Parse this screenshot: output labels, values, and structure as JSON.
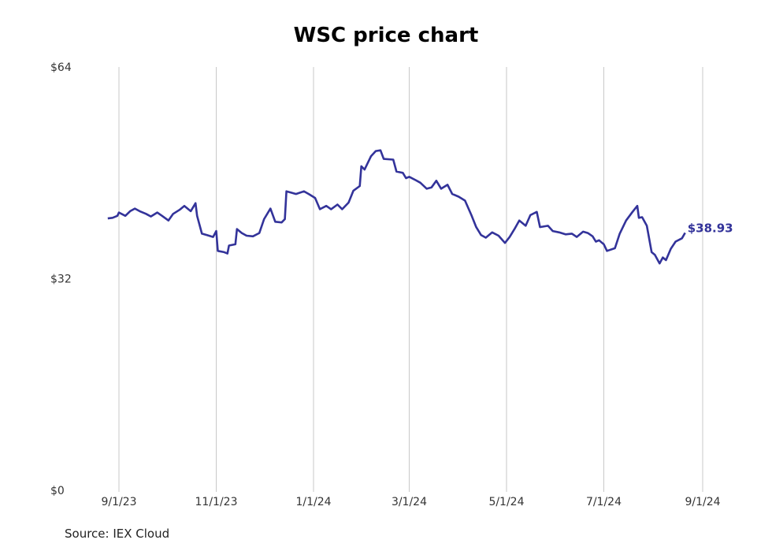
{
  "chart_data": {
    "type": "line",
    "title": "WSC price chart",
    "source": "Source: IEX Cloud",
    "y_ticks": [
      {
        "value": 0,
        "label": "$0"
      },
      {
        "value": 32,
        "label": "$32"
      },
      {
        "value": 64,
        "label": "$64"
      }
    ],
    "x_ticks": [
      {
        "date": "2023-09-01",
        "label": "9/1/23"
      },
      {
        "date": "2023-11-01",
        "label": "11/1/23"
      },
      {
        "date": "2024-01-01",
        "label": "1/1/24"
      },
      {
        "date": "2024-03-01",
        "label": "3/1/24"
      },
      {
        "date": "2024-05-01",
        "label": "5/1/24"
      },
      {
        "date": "2024-07-01",
        "label": "7/1/24"
      },
      {
        "date": "2024-09-01",
        "label": "9/1/24"
      }
    ],
    "ylim": [
      0,
      64
    ],
    "xlim": [
      "2023-08-25",
      "2024-09-01"
    ],
    "grid": "vertical",
    "line_color": "#33339a",
    "end_label": "$38.93",
    "series": [
      {
        "points": [
          [
            "2023-08-25",
            41.1
          ],
          [
            "2023-08-28",
            41.2
          ],
          [
            "2023-08-31",
            41.5
          ],
          [
            "2023-09-01",
            42.0
          ],
          [
            "2023-09-05",
            41.5
          ],
          [
            "2023-09-08",
            42.2
          ],
          [
            "2023-09-11",
            42.6
          ],
          [
            "2023-09-14",
            42.2
          ],
          [
            "2023-09-18",
            41.8
          ],
          [
            "2023-09-21",
            41.4
          ],
          [
            "2023-09-25",
            42.0
          ],
          [
            "2023-09-28",
            41.5
          ],
          [
            "2023-10-02",
            40.8
          ],
          [
            "2023-10-05",
            41.8
          ],
          [
            "2023-10-09",
            42.4
          ],
          [
            "2023-10-12",
            43.0
          ],
          [
            "2023-10-16",
            42.2
          ],
          [
            "2023-10-19",
            43.4
          ],
          [
            "2023-10-20",
            41.5
          ],
          [
            "2023-10-23",
            38.8
          ],
          [
            "2023-10-26",
            38.6
          ],
          [
            "2023-10-30",
            38.3
          ],
          [
            "2023-11-01",
            39.2
          ],
          [
            "2023-11-02",
            36.2
          ],
          [
            "2023-11-06",
            36.0
          ],
          [
            "2023-11-08",
            35.8
          ],
          [
            "2023-11-09",
            37.0
          ],
          [
            "2023-11-13",
            37.2
          ],
          [
            "2023-11-14",
            39.5
          ],
          [
            "2023-11-17",
            38.9
          ],
          [
            "2023-11-20",
            38.5
          ],
          [
            "2023-11-24",
            38.4
          ],
          [
            "2023-11-28",
            38.9
          ],
          [
            "2023-12-01",
            41.0
          ],
          [
            "2023-12-05",
            42.6
          ],
          [
            "2023-12-08",
            40.6
          ],
          [
            "2023-12-12",
            40.5
          ],
          [
            "2023-12-14",
            41.0
          ],
          [
            "2023-12-15",
            45.2
          ],
          [
            "2023-12-18",
            45.0
          ],
          [
            "2023-12-21",
            44.8
          ],
          [
            "2023-12-26",
            45.2
          ],
          [
            "2023-12-29",
            44.8
          ],
          [
            "2024-01-02",
            44.2
          ],
          [
            "2024-01-05",
            42.5
          ],
          [
            "2024-01-09",
            43.0
          ],
          [
            "2024-01-12",
            42.5
          ],
          [
            "2024-01-16",
            43.2
          ],
          [
            "2024-01-19",
            42.5
          ],
          [
            "2024-01-23",
            43.5
          ],
          [
            "2024-01-26",
            45.3
          ],
          [
            "2024-01-30",
            46.0
          ],
          [
            "2024-01-31",
            49.0
          ],
          [
            "2024-02-02",
            48.5
          ],
          [
            "2024-02-06",
            50.5
          ],
          [
            "2024-02-09",
            51.3
          ],
          [
            "2024-02-12",
            51.4
          ],
          [
            "2024-02-14",
            50.1
          ],
          [
            "2024-02-20",
            50.0
          ],
          [
            "2024-02-22",
            48.2
          ],
          [
            "2024-02-26",
            48.0
          ],
          [
            "2024-02-28",
            47.2
          ],
          [
            "2024-03-01",
            47.4
          ],
          [
            "2024-03-05",
            46.9
          ],
          [
            "2024-03-08",
            46.5
          ],
          [
            "2024-03-12",
            45.6
          ],
          [
            "2024-03-15",
            45.8
          ],
          [
            "2024-03-18",
            46.8
          ],
          [
            "2024-03-21",
            45.6
          ],
          [
            "2024-03-25",
            46.2
          ],
          [
            "2024-03-28",
            44.8
          ],
          [
            "2024-04-01",
            44.4
          ],
          [
            "2024-04-05",
            43.8
          ],
          [
            "2024-04-09",
            41.6
          ],
          [
            "2024-04-12",
            39.8
          ],
          [
            "2024-04-15",
            38.6
          ],
          [
            "2024-04-18",
            38.2
          ],
          [
            "2024-04-22",
            39.0
          ],
          [
            "2024-04-26",
            38.5
          ],
          [
            "2024-04-30",
            37.4
          ],
          [
            "2024-05-03",
            38.3
          ],
          [
            "2024-05-06",
            39.5
          ],
          [
            "2024-05-09",
            40.8
          ],
          [
            "2024-05-13",
            40.0
          ],
          [
            "2024-05-16",
            41.6
          ],
          [
            "2024-05-20",
            42.1
          ],
          [
            "2024-05-22",
            39.8
          ],
          [
            "2024-05-27",
            40.0
          ],
          [
            "2024-05-30",
            39.2
          ],
          [
            "2024-06-03",
            39.0
          ],
          [
            "2024-06-07",
            38.7
          ],
          [
            "2024-06-11",
            38.8
          ],
          [
            "2024-06-14",
            38.3
          ],
          [
            "2024-06-18",
            39.1
          ],
          [
            "2024-06-21",
            38.9
          ],
          [
            "2024-06-24",
            38.4
          ],
          [
            "2024-06-26",
            37.6
          ],
          [
            "2024-06-28",
            37.8
          ],
          [
            "2024-07-01",
            37.2
          ],
          [
            "2024-07-03",
            36.2
          ],
          [
            "2024-07-08",
            36.6
          ],
          [
            "2024-07-11",
            38.8
          ],
          [
            "2024-07-15",
            40.8
          ],
          [
            "2024-07-19",
            42.1
          ],
          [
            "2024-07-22",
            43.0
          ],
          [
            "2024-07-23",
            41.2
          ],
          [
            "2024-07-25",
            41.3
          ],
          [
            "2024-07-28",
            40.0
          ],
          [
            "2024-07-31",
            36.0
          ],
          [
            "2024-08-02",
            35.6
          ],
          [
            "2024-08-05",
            34.3
          ],
          [
            "2024-08-07",
            35.2
          ],
          [
            "2024-08-09",
            34.8
          ],
          [
            "2024-08-12",
            36.5
          ],
          [
            "2024-08-15",
            37.6
          ],
          [
            "2024-08-19",
            38.1
          ],
          [
            "2024-08-21",
            38.93
          ]
        ]
      }
    ]
  }
}
